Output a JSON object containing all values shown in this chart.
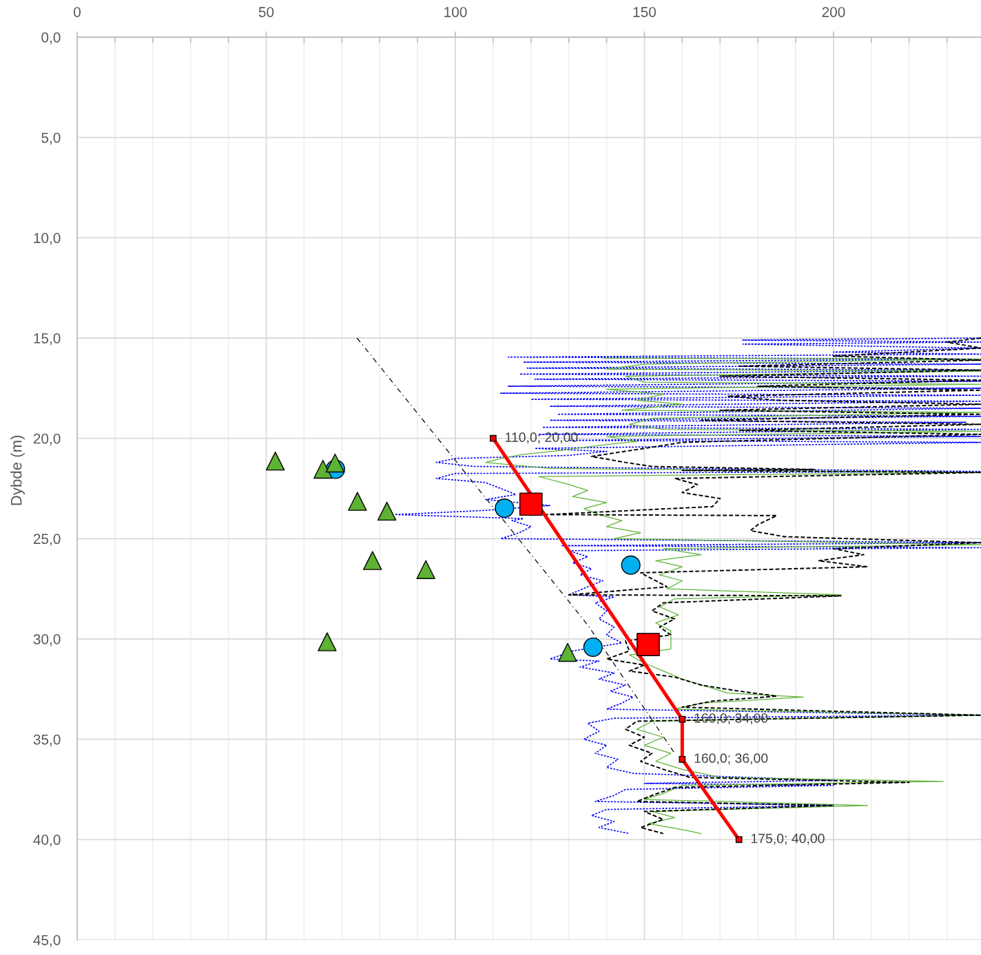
{
  "chart_data": {
    "type": "line",
    "ylabel": "Dybde (m)",
    "grid": true,
    "xlim": [
      0,
      239
    ],
    "xticks": [
      0,
      {
        "value": 10,
        "label": null
      },
      {
        "value": 20,
        "label": null
      },
      {
        "value": 30,
        "label": null
      },
      {
        "value": 40,
        "label": null
      },
      50,
      {
        "value": 60,
        "label": null
      },
      {
        "value": 70,
        "label": null
      },
      {
        "value": 80,
        "label": null
      },
      {
        "value": 90,
        "label": null
      },
      100,
      {
        "value": 110,
        "label": null
      },
      {
        "value": 120,
        "label": null
      },
      {
        "value": 130,
        "label": null
      },
      {
        "value": 140,
        "label": null
      },
      150,
      {
        "value": 160,
        "label": null
      },
      {
        "value": 170,
        "label": null
      },
      {
        "value": 180,
        "label": null
      },
      {
        "value": 190,
        "label": null
      },
      200,
      {
        "value": 210,
        "label": null
      },
      {
        "value": 220,
        "label": null
      },
      {
        "value": 230,
        "label": null
      }
    ],
    "ylim": [
      45,
      0
    ],
    "yticks": [
      {
        "value": 0,
        "label": "0,0"
      },
      {
        "value": 5,
        "label": "5,0"
      },
      {
        "value": 10,
        "label": "10,0"
      },
      {
        "value": 15,
        "label": "15,0"
      },
      {
        "value": 20,
        "label": "20,0"
      },
      {
        "value": 25,
        "label": "25,0"
      },
      {
        "value": 30,
        "label": "30,0"
      },
      {
        "value": 35,
        "label": "35,0"
      },
      {
        "value": 40,
        "label": "40,0"
      },
      {
        "value": 45,
        "label": "45,0"
      }
    ],
    "series": [
      {
        "color": "#0000ff",
        "line_style": "dotted",
        "x": [
          239,
          176,
          239,
          176,
          239,
          200,
          239,
          114,
          239,
          118,
          239,
          119,
          239,
          117,
          239,
          121,
          239,
          114,
          239,
          112,
          239,
          120,
          239,
          125,
          239,
          127,
          239,
          125,
          235,
          123,
          239,
          122,
          239,
          130,
          239,
          121,
          140,
          130,
          100,
          95,
          105,
          239,
          100,
          95,
          108,
          112,
          116,
          108,
          125,
          107,
          84,
          118,
          115,
          120,
          117,
          112,
          239,
          128,
          239,
          130,
          135,
          131,
          136,
          133,
          139,
          135,
          130,
          142,
          137,
          140,
          138,
          142,
          140,
          144,
          131,
          125,
          138,
          133,
          142,
          138,
          145,
          141,
          147,
          144,
          140,
          239,
          142,
          135,
          138,
          134,
          140,
          137,
          143,
          140,
          147,
          200,
          150,
          200,
          145,
          142,
          137,
          200,
          140,
          136,
          142,
          138,
          146
        ],
        "values": [
          15.0,
          15.1,
          15.2,
          15.3,
          15.5,
          15.7,
          15.8,
          15.95,
          16.05,
          16.2,
          16.3,
          16.5,
          16.6,
          16.8,
          16.9,
          17.05,
          17.15,
          17.4,
          17.5,
          17.75,
          17.85,
          18.05,
          18.15,
          18.4,
          18.5,
          18.8,
          18.9,
          19.1,
          19.2,
          19.45,
          19.55,
          19.8,
          19.9,
          20.1,
          20.2,
          20.5,
          20.65,
          20.85,
          21.0,
          21.2,
          21.4,
          21.65,
          21.75,
          22.0,
          22.2,
          22.5,
          22.8,
          23.05,
          23.35,
          23.6,
          23.8,
          24.0,
          24.1,
          24.4,
          24.7,
          25.0,
          25.2,
          25.35,
          25.45,
          25.6,
          25.9,
          26.2,
          26.5,
          26.8,
          27.1,
          27.4,
          27.8,
          27.9,
          28.2,
          28.6,
          29.0,
          29.4,
          29.8,
          30.2,
          30.6,
          31.0,
          31.1,
          31.4,
          31.7,
          32.0,
          32.3,
          32.6,
          32.9,
          33.2,
          33.5,
          33.8,
          33.95,
          34.2,
          34.6,
          35.0,
          35.3,
          35.7,
          36.0,
          36.4,
          36.7,
          37.05,
          37.2,
          37.3,
          37.5,
          37.8,
          38.1,
          38.3,
          38.5,
          38.8,
          39.1,
          39.4,
          39.7
        ]
      },
      {
        "color": "#5eb234",
        "line_style": "solid",
        "x": [
          139,
          239,
          150,
          140,
          239,
          145,
          150,
          239,
          140,
          155,
          148,
          160,
          144,
          239,
          152,
          146,
          155,
          239,
          140,
          148,
          138,
          128,
          118,
          112,
          108,
          125,
          239,
          122,
          130,
          135,
          131,
          140,
          134,
          138,
          144,
          140,
          149,
          142,
          239,
          155,
          165,
          153,
          160,
          154,
          160,
          156,
          202,
          158,
          154,
          159,
          153,
          157,
          157,
          157,
          146,
          150,
          155,
          160,
          167,
          172,
          192,
          165,
          158,
          239,
          152,
          148,
          155,
          150,
          157,
          153,
          160,
          170,
          229,
          160,
          155,
          150,
          209,
          152,
          158,
          151,
          160,
          165
        ],
        "values": [
          16.0,
          16.05,
          16.3,
          16.55,
          16.65,
          16.9,
          17.2,
          17.3,
          17.55,
          17.8,
          18.1,
          18.3,
          18.6,
          18.7,
          19.0,
          19.3,
          19.55,
          19.65,
          19.9,
          20.15,
          20.35,
          20.6,
          20.8,
          21.0,
          21.2,
          21.5,
          21.7,
          21.9,
          22.3,
          22.6,
          22.9,
          23.2,
          23.5,
          23.8,
          24.1,
          24.4,
          24.7,
          25.0,
          25.3,
          25.5,
          25.8,
          26.1,
          26.4,
          26.8,
          27.1,
          27.5,
          27.8,
          28.0,
          28.4,
          28.8,
          29.2,
          29.6,
          30.0,
          30.5,
          30.8,
          31.2,
          31.6,
          32.0,
          32.4,
          32.7,
          32.9,
          33.2,
          33.5,
          33.8,
          34.1,
          34.5,
          34.9,
          35.3,
          35.7,
          36.1,
          36.5,
          36.9,
          37.1,
          37.3,
          37.7,
          38.0,
          38.3,
          38.6,
          38.9,
          39.2,
          39.5,
          39.7
        ]
      },
      {
        "color": "#000000",
        "line_style": "dashed",
        "x": [
          239,
          230,
          239,
          200,
          239,
          175,
          239,
          170,
          239,
          180,
          239,
          172,
          185,
          239,
          170,
          239,
          165,
          239,
          175,
          239,
          160,
          150,
          136,
          145,
          152,
          195,
          160,
          239,
          158,
          164,
          160,
          170,
          168,
          124,
          185,
          180,
          178,
          187,
          239,
          200,
          208,
          196,
          209,
          149,
          152,
          156,
          130,
          202,
          155,
          152,
          158,
          154,
          157,
          145,
          146,
          140,
          150,
          146,
          158,
          165,
          175,
          185,
          168,
          160,
          239,
          148,
          145,
          150,
          146,
          152,
          149,
          155,
          162,
          220,
          158,
          152,
          148,
          200,
          150,
          155,
          149,
          155
        ],
        "values": [
          15.0,
          15.2,
          15.5,
          15.9,
          16.1,
          16.4,
          16.6,
          16.9,
          17.1,
          17.4,
          17.6,
          17.9,
          18.1,
          18.3,
          18.6,
          18.8,
          19.1,
          19.3,
          19.6,
          19.8,
          20.2,
          20.5,
          20.9,
          21.2,
          21.4,
          21.55,
          21.6,
          21.7,
          22.0,
          22.3,
          22.7,
          23.0,
          23.4,
          23.8,
          23.85,
          24.3,
          24.6,
          24.9,
          25.2,
          25.5,
          25.8,
          26.1,
          26.4,
          26.7,
          27.0,
          27.4,
          27.8,
          27.85,
          28.2,
          28.6,
          29.0,
          29.4,
          29.8,
          30.1,
          30.6,
          31.0,
          31.3,
          31.6,
          31.9,
          32.3,
          32.6,
          32.85,
          33.1,
          33.4,
          33.8,
          34.1,
          34.5,
          34.9,
          35.3,
          35.7,
          36.1,
          36.5,
          36.9,
          37.15,
          37.4,
          37.8,
          38.1,
          38.3,
          38.6,
          39.0,
          39.4,
          39.7
        ]
      },
      {
        "color": "#000000",
        "line_style": "dashdot",
        "x": [
          74,
          135,
          158
        ],
        "values": [
          15,
          29.3,
          35.7
        ]
      },
      {
        "color": "#ff0000",
        "line_style": "solid",
        "marker": "square",
        "x": [
          110,
          160,
          160,
          175
        ],
        "values": [
          20,
          34,
          36,
          40
        ],
        "value_labels": [
          "110,0; 20,00",
          "160,0; 34,00",
          "160,0; 36,00",
          "175,0; 40,00"
        ]
      },
      {
        "type": "scatter",
        "color": "#00b0f0",
        "marker": "circle",
        "x": [
          68.3,
          113.0,
          146.4,
          136.4
        ],
        "values": [
          21.54,
          23.48,
          26.32,
          30.41
        ]
      },
      {
        "type": "scatter",
        "color": "#5eb234",
        "marker": "triangle",
        "x": [
          52.4,
          65.0,
          68.2,
          74.1,
          81.9,
          78.1,
          92.2,
          66.1,
          129.7
        ],
        "values": [
          21.13,
          21.54,
          21.23,
          23.14,
          23.63,
          26.09,
          26.54,
          30.14,
          30.67
        ]
      },
      {
        "type": "scatter",
        "color": "#ff0000",
        "marker": "square",
        "x": [
          120.0,
          151.0
        ],
        "values": [
          23.28,
          30.28
        ]
      }
    ]
  }
}
